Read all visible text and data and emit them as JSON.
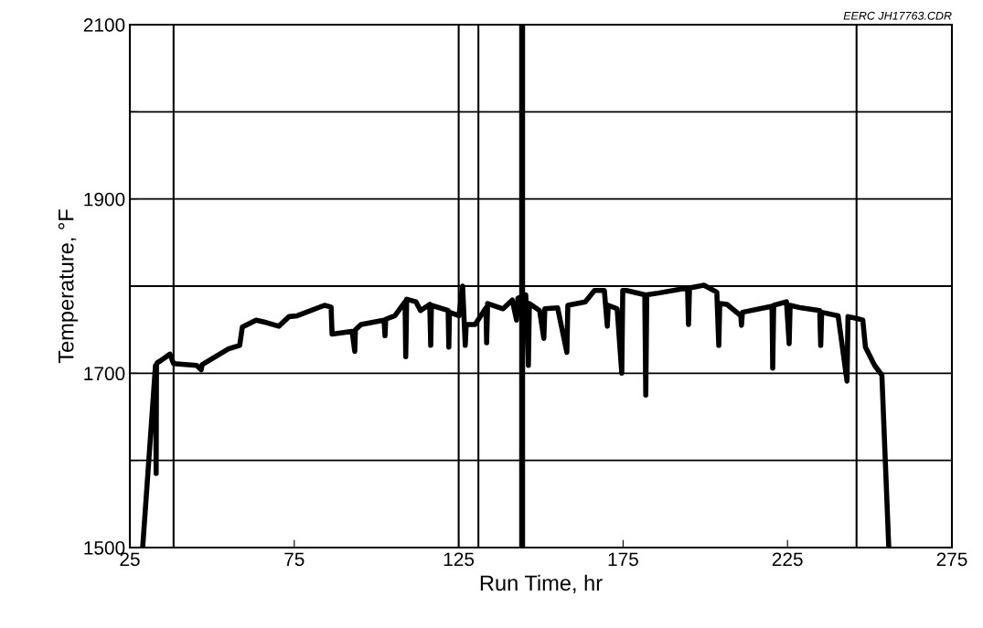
{
  "chart_data": {
    "type": "line",
    "xlabel": "Run Time, hr",
    "ylabel": "Temperature, °F",
    "annotations": [
      "EERC JH17763.CDR"
    ],
    "xlim": [
      25,
      275
    ],
    "xticks": [
      25,
      75,
      125,
      175,
      225,
      275
    ],
    "ylim": [
      1500,
      2100
    ],
    "yticks": [
      1500,
      {
        "value": 1600,
        "label": null
      },
      1700,
      {
        "value": 1800,
        "label": null
      },
      1900,
      {
        "value": 2000,
        "label": null
      },
      2100
    ],
    "grid": "y",
    "line_style": "solid",
    "marker": "none",
    "series": [
      {
        "color": "#000000",
        "x": [
          28.9,
          32.8,
          33.0,
          33.1,
          33.3,
          34.2,
          37.2,
          38.3,
          45.3,
          46.7,
          47.0,
          55,
          58.4,
          59.2,
          63.4,
          66.7,
          70.3,
          73.4,
          75.9,
          84.2,
          86.2,
          86.5,
          92.6,
          93.4,
          93.6,
          95.3,
          102.3,
          102.6,
          102.8,
          105.6,
          108.7,
          108.9,
          109.2,
          112,
          113.4,
          116.2,
          116.5,
          116.7,
          121.8,
          122.0,
          122.2,
          125.1,
          126.2,
          127.0,
          127.3,
          130,
          133.3,
          133.5,
          133.8,
          138.5,
          141.3,
          142.6,
          143.0,
          145.4,
          146.2,
          146.5,
          149.6,
          150.9,
          151.2,
          155.1,
          157.9,
          158.2,
          163.5,
          166.3,
          169.3,
          170.2,
          170.5,
          173.2,
          174.6,
          174.9,
          176,
          181.6,
          181.9,
          182.2,
          185.7,
          194.6,
          194.9,
          195.2,
          199.6,
          203.5,
          204.1,
          204.4,
          206.6,
          210.8,
          211.0,
          211.3,
          220.3,
          220.5,
          220.8,
          224.7,
          225.5,
          225.8,
          229.2,
          234.8,
          235.1,
          235.4,
          240.4,
          243.1,
          243.4,
          245.9,
          247.9,
          248.7,
          251.5,
          253.7,
          255.8
        ],
        "values": [
          1500,
          1709,
          1585,
          1709,
          1712,
          1714,
          1722,
          1711,
          1709,
          1704,
          1710,
          1728,
          1732,
          1753,
          1761,
          1758,
          1754,
          1765,
          1766,
          1778,
          1776,
          1745,
          1748,
          1725,
          1750,
          1756,
          1761,
          1743,
          1762,
          1766,
          1782,
          1719,
          1785,
          1782,
          1772,
          1779,
          1732,
          1778,
          1772,
          1730,
          1770,
          1766,
          1800,
          1732,
          1756,
          1756,
          1775,
          1735,
          1780,
          1774,
          1784,
          1761,
          1786,
          1790,
          1709,
          1780,
          1772,
          1740,
          1774,
          1775,
          1724,
          1778,
          1782,
          1795,
          1795,
          1754,
          1778,
          1774,
          1700,
          1795,
          1795,
          1790,
          1675,
          1790,
          1792,
          1798,
          1756,
          1798,
          1801,
          1793,
          1732,
          1780,
          1779,
          1766,
          1755,
          1770,
          1777,
          1706,
          1778,
          1782,
          1734,
          1778,
          1775,
          1772,
          1732,
          1770,
          1766,
          1691,
          1765,
          1763,
          1761,
          1730,
          1709,
          1698,
          1500
        ]
      }
    ],
    "ref_lines": [
      {
        "axis": "x",
        "value": 38.3,
        "color": "#000000"
      },
      {
        "axis": "x",
        "value": 125.0,
        "color": "#000000"
      },
      {
        "axis": "x",
        "value": 131.0,
        "color": "#000000"
      },
      {
        "axis": "x",
        "value": 246.0,
        "color": "#000000"
      }
    ],
    "bands": [
      {
        "axis": "x",
        "from": 143.4,
        "to": 145.2,
        "color": "#000000"
      }
    ]
  }
}
